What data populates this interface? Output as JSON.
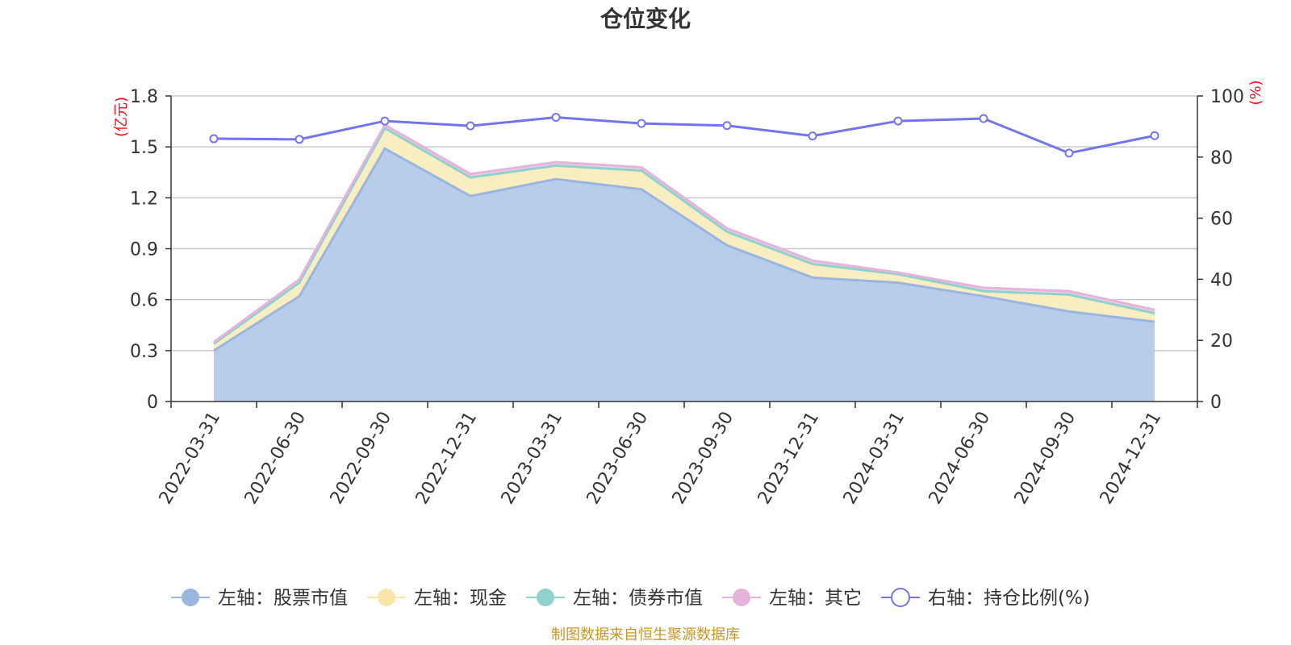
{
  "chart_data": {
    "type": "area",
    "title": "仓位变化",
    "categories": [
      "2022-03-31",
      "2022-06-30",
      "2022-09-30",
      "2022-12-31",
      "2023-03-31",
      "2023-06-30",
      "2023-09-30",
      "2023-12-31",
      "2024-03-31",
      "2024-06-30",
      "2024-09-30",
      "2024-12-31"
    ],
    "left_axis": {
      "unit": "(亿元)",
      "ylim": [
        0,
        1.8
      ],
      "ticks": [
        "0",
        "0.3",
        "0.6",
        "0.9",
        "1.2",
        "1.5",
        "1.8"
      ]
    },
    "right_axis": {
      "unit": "(%)",
      "ylim": [
        0,
        100
      ],
      "ticks": [
        "0",
        "20",
        "40",
        "60",
        "80",
        "100"
      ]
    },
    "series": [
      {
        "name": "左轴：股票市值",
        "axis": "left",
        "kind": "stacked-area",
        "color": "#9ab5e0",
        "fill": "#b8cdea",
        "values": [
          0.3,
          0.62,
          1.49,
          1.21,
          1.31,
          1.25,
          0.92,
          0.73,
          0.7,
          0.62,
          0.53,
          0.47
        ]
      },
      {
        "name": "左轴：现金",
        "axis": "left",
        "kind": "stacked-area",
        "color": "#f9e5a8",
        "fill": "#f9eec1",
        "values": [
          0.04,
          0.08,
          0.12,
          0.11,
          0.08,
          0.11,
          0.08,
          0.08,
          0.05,
          0.03,
          0.1,
          0.05
        ]
      },
      {
        "name": "左轴：债券市值",
        "axis": "left",
        "kind": "stacked-area",
        "color": "#8fd1cf",
        "fill": "#b9e3e1",
        "values": [
          0,
          0,
          0,
          0,
          0,
          0,
          0,
          0,
          0,
          0,
          0,
          0
        ]
      },
      {
        "name": "左轴：其它",
        "axis": "left",
        "kind": "stacked-area",
        "color": "#e5b3dc",
        "fill": "#f0cfe9",
        "values": [
          0.01,
          0.02,
          0.02,
          0.02,
          0.02,
          0.02,
          0.02,
          0.02,
          0.01,
          0.02,
          0.02,
          0.02
        ]
      },
      {
        "name": "右轴：持仓比例(%)",
        "axis": "right",
        "kind": "line",
        "color": "#7474ee",
        "values": [
          86.0,
          85.8,
          91.8,
          90.2,
          93.0,
          91.0,
          90.3,
          86.9,
          91.8,
          92.6,
          81.3,
          87.0
        ]
      }
    ],
    "grid": true,
    "legend": "bottom-center"
  },
  "source_note": "制图数据来自恒生聚源数据库"
}
